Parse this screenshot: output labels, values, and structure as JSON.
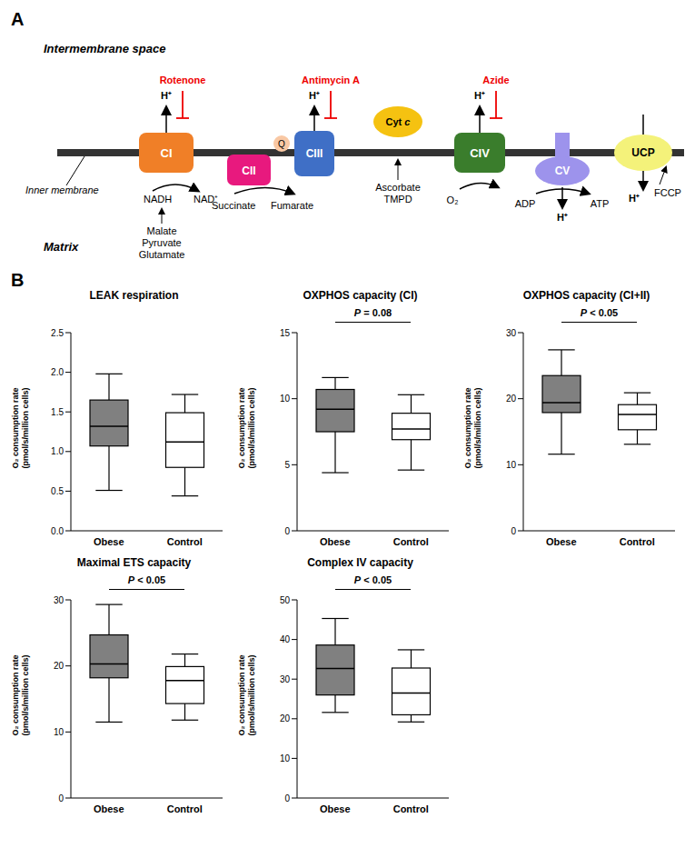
{
  "diagram": {
    "panel_label": "A",
    "labels": {
      "intermembrane": "Intermembrane space",
      "membrane": "Inner membrane",
      "matrix": "Matrix"
    },
    "complexes": {
      "CI": {
        "label": "CI",
        "color": "#f07f27"
      },
      "CII": {
        "label": "CII",
        "color": "#e8197e"
      },
      "Q": {
        "label": "Q",
        "color": "#f9c8a4"
      },
      "CIII": {
        "label": "CIII",
        "color": "#3f6fc6"
      },
      "CYTC": {
        "label": "Cyt c",
        "color": "#f5c211"
      },
      "CIV": {
        "label": "CIV",
        "color": "#3a7d2c"
      },
      "CV": {
        "label": "CV",
        "color": "#9d93ec"
      },
      "UCP": {
        "label": "UCP",
        "color": "#f4f27a"
      }
    },
    "inhibitors": {
      "CI": "Rotenone",
      "CIII": "Antimycin A",
      "CIV": "Azide"
    },
    "proton": "H⁺",
    "texts": {
      "nadh": "NADH",
      "nad": "NAD⁺",
      "ci_substrates": [
        "Malate",
        "Pyruvate",
        "Glutamate"
      ],
      "succinate": "Succinate",
      "fumarate": "Fumarate",
      "cytc_substrates": [
        "Ascorbate",
        "TMPD"
      ],
      "o2": "O₂",
      "adp": "ADP",
      "atp": "ATP",
      "fccp": "FCCP"
    }
  },
  "panel_b_label": "B",
  "chart_data": [
    {
      "type": "box",
      "title": "LEAK respiration",
      "categories": [
        "Obese",
        "Control"
      ],
      "colors": [
        "#808080",
        "#ffffff"
      ],
      "min": [
        0.51,
        0.44
      ],
      "q1": [
        1.07,
        0.8
      ],
      "median": [
        1.32,
        1.12
      ],
      "q3": [
        1.65,
        1.49
      ],
      "max": [
        1.98,
        1.72
      ],
      "ylim": [
        0,
        2.5
      ],
      "yticks": [
        {
          "value": 0,
          "label": "0.0"
        },
        0.5,
        {
          "value": 1,
          "label": "1.0"
        },
        1.5,
        {
          "value": 2,
          "label": "2.0"
        },
        2.5
      ],
      "y_label": [
        "O₂ consumption rate",
        "(pmol/s/million cells)"
      ]
    },
    {
      "type": "box",
      "title": "OXPHOS capacity (CI)",
      "categories": [
        "Obese",
        "Control"
      ],
      "colors": [
        "#808080",
        "#ffffff"
      ],
      "min": [
        4.4,
        4.6
      ],
      "q1": [
        7.5,
        6.9
      ],
      "median": [
        9.2,
        7.7
      ],
      "q3": [
        10.7,
        8.9
      ],
      "max": [
        11.6,
        10.3
      ],
      "ylim": [
        0,
        15
      ],
      "yticks": [
        0,
        5,
        10,
        15
      ],
      "y_label": [
        "O₂ consumption rate",
        "(pmol/s/million cells)"
      ],
      "annotation": "P = 0.08"
    },
    {
      "type": "box",
      "title": "OXPHOS capacity (CI+II)",
      "categories": [
        "Obese",
        "Control"
      ],
      "colors": [
        "#808080",
        "#ffffff"
      ],
      "min": [
        11.6,
        13.1
      ],
      "q1": [
        17.9,
        15.3
      ],
      "median": [
        19.4,
        17.6
      ],
      "q3": [
        23.5,
        19.1
      ],
      "max": [
        27.4,
        20.9
      ],
      "ylim": [
        0,
        30
      ],
      "yticks": [
        0,
        10,
        20,
        30
      ],
      "y_label": [
        "O₂ consumption rate",
        "(pmol/s/million cells)"
      ],
      "annotation": "P < 0.05"
    },
    {
      "type": "box",
      "title": "Maximal ETS capacity",
      "categories": [
        "Obese",
        "Control"
      ],
      "colors": [
        "#808080",
        "#ffffff"
      ],
      "min": [
        11.5,
        11.8
      ],
      "q1": [
        18.2,
        14.3
      ],
      "median": [
        20.3,
        17.8
      ],
      "q3": [
        24.7,
        19.9
      ],
      "max": [
        29.3,
        21.8
      ],
      "ylim": [
        0,
        30
      ],
      "yticks": [
        0,
        10,
        20,
        30
      ],
      "y_label": [
        "O₂ consumption rate",
        "(pmol/s/million cells)"
      ],
      "annotation": "P < 0.05"
    },
    {
      "type": "box",
      "title": "Complex IV capacity",
      "categories": [
        "Obese",
        "Control"
      ],
      "colors": [
        "#808080",
        "#ffffff"
      ],
      "min": [
        21.6,
        19.2
      ],
      "q1": [
        26.0,
        21.0
      ],
      "median": [
        32.7,
        26.5
      ],
      "q3": [
        38.6,
        32.8
      ],
      "max": [
        45.3,
        37.4
      ],
      "ylim": [
        0,
        50
      ],
      "yticks": [
        0,
        10,
        20,
        30,
        40,
        50
      ],
      "y_label": [
        "O₂ consumption rate",
        "(pmol/s/million cells)"
      ],
      "annotation": "P < 0.05"
    }
  ]
}
